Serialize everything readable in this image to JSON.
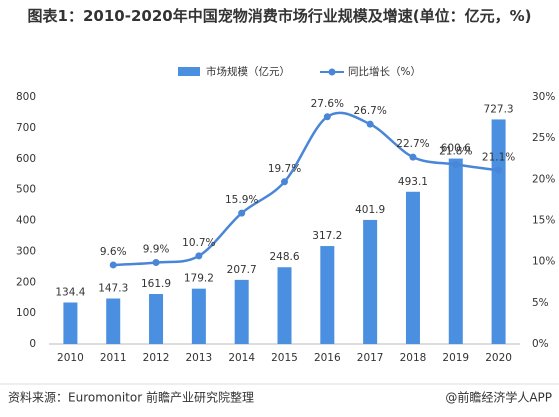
{
  "chart_data": {
    "type": "bar-line",
    "title": "图表1：2010-2020年中国宠物消费市场行业规模及增速(单位：亿元，%)",
    "categories": [
      "2010",
      "2011",
      "2012",
      "2013",
      "2014",
      "2015",
      "2016",
      "2017",
      "2018",
      "2019",
      "2020"
    ],
    "series": [
      {
        "name": "市场规模（亿元）",
        "type": "bar",
        "color": "#4a8fe0",
        "values": [
          134.4,
          147.3,
          161.9,
          179.2,
          207.7,
          248.6,
          317.2,
          401.9,
          493.1,
          600.6,
          727.3
        ]
      },
      {
        "name": "同比增长（%）",
        "type": "line",
        "axis": "y2",
        "color": "#4a86d8",
        "values": [
          null,
          9.6,
          9.9,
          10.7,
          15.9,
          19.7,
          27.6,
          26.7,
          22.7,
          21.8,
          21.1
        ],
        "value_labels": [
          null,
          "9.6%",
          "9.9%",
          "10.7%",
          "15.9%",
          "19.7%",
          "27.6%",
          "26.7%",
          "22.7%",
          "21.8%",
          "21.1%"
        ]
      }
    ],
    "ylim": [
      0,
      800
    ],
    "yticks": [
      0,
      100,
      200,
      300,
      400,
      500,
      600,
      700,
      800
    ],
    "y2lim": [
      0,
      30
    ],
    "y2ticks": [
      {
        "value": 0,
        "label": "0%"
      },
      {
        "value": 5,
        "label": "5%"
      },
      {
        "value": 10,
        "label": "10%"
      },
      {
        "value": 15,
        "label": "15%"
      },
      {
        "value": 20,
        "label": "20%"
      },
      {
        "value": 25,
        "label": "25%"
      },
      {
        "value": 30,
        "label": "30%"
      }
    ],
    "source": "资料来源：Euromonitor 前瞻产业研究院整理",
    "credit": "@前瞻经济学人APP"
  }
}
